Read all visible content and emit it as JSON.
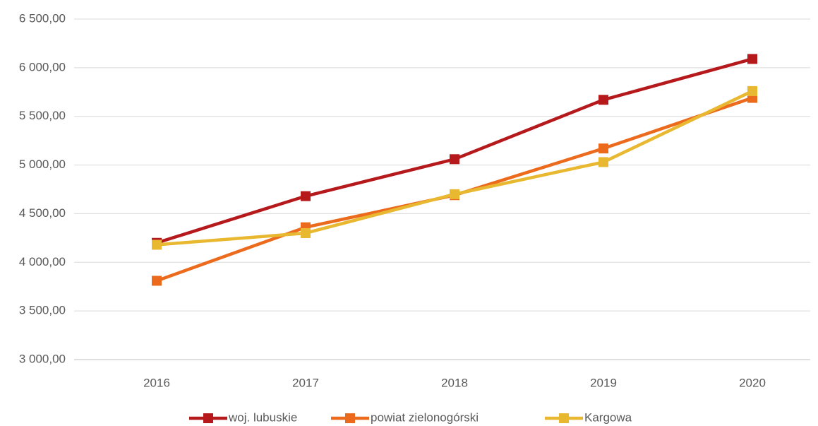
{
  "chart_data": {
    "type": "line",
    "categories": [
      "2016",
      "2017",
      "2018",
      "2019",
      "2020"
    ],
    "series": [
      {
        "name": "woj. lubuskie",
        "color": "#b5191b",
        "values": [
          4200,
          4680,
          5060,
          5670,
          6090
        ]
      },
      {
        "name": "powiat zielonogórski",
        "color": "#ec6a1c",
        "values": [
          3810,
          4360,
          4690,
          5170,
          5690
        ]
      },
      {
        "name": "Kargowa",
        "color": "#e9b831",
        "values": [
          4180,
          4300,
          4700,
          5030,
          5760
        ]
      }
    ],
    "ylim": [
      3000,
      6500
    ],
    "yticks": [
      {
        "value": 3000,
        "label": "3 000,00"
      },
      {
        "value": 3500,
        "label": "3 500,00"
      },
      {
        "value": 4000,
        "label": "4 000,00"
      },
      {
        "value": 4500,
        "label": "4 500,00"
      },
      {
        "value": 5000,
        "label": "5 000,00"
      },
      {
        "value": 5500,
        "label": "5 500,00"
      },
      {
        "value": 6000,
        "label": "6 000,00"
      },
      {
        "value": 6500,
        "label": "6 500,00"
      }
    ],
    "grid": true,
    "legend": "bottom"
  }
}
